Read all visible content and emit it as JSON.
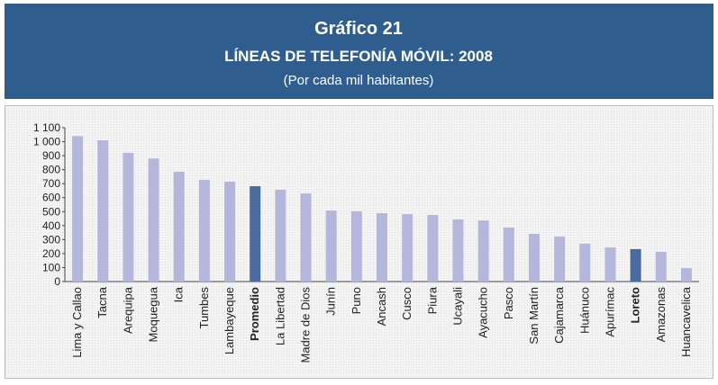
{
  "chart_data": {
    "type": "bar",
    "title": "Gráfico 21",
    "subtitle": "LÍNEAS DE TELEFONÍA MÓVIL: 2008",
    "note": "(Por cada mil habitantes)",
    "categories": [
      "Lima y Callao",
      "Tacna",
      "Arequipa",
      "Moquegua",
      "Ica",
      "Tumbes",
      "Lambayeque",
      "Promedio",
      "La Libertad",
      "Madre de Dios",
      "Junín",
      "Puno",
      "Ancash",
      "Cusco",
      "Piura",
      "Ucayali",
      "Ayacucho",
      "Pasco",
      "San Martín",
      "Cajamarca",
      "Huánuco",
      "Apurímac",
      "Loreto",
      "Amazonas",
      "Huancavelica"
    ],
    "values": [
      1040,
      1010,
      920,
      880,
      785,
      727,
      714,
      682,
      656,
      630,
      508,
      502,
      489,
      482,
      476,
      444,
      437,
      386,
      341,
      322,
      270,
      244,
      232,
      212,
      96
    ],
    "colors": [
      "#b4b7db",
      "#b4b7db",
      "#b4b7db",
      "#b4b7db",
      "#b4b7db",
      "#b4b7db",
      "#b4b7db",
      "#4a6b9f",
      "#b4b7db",
      "#b4b7db",
      "#b4b7db",
      "#b4b7db",
      "#b4b7db",
      "#b4b7db",
      "#b4b7db",
      "#b4b7db",
      "#b4b7db",
      "#b4b7db",
      "#b4b7db",
      "#b4b7db",
      "#b4b7db",
      "#b4b7db",
      "#4a6b9f",
      "#b4b7db",
      "#b4b7db"
    ],
    "highlight_color": "#4a6b9f",
    "ylim": [
      0,
      1100
    ],
    "yticks": [
      0,
      100,
      200,
      300,
      400,
      500,
      600,
      700,
      800,
      900,
      {
        "value": 1000,
        "label": "1 000"
      },
      {
        "value": 1100,
        "label": "1 100"
      }
    ]
  }
}
